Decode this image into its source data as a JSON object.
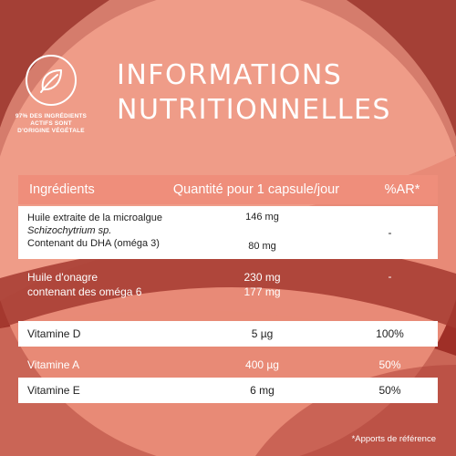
{
  "badge": {
    "icon": "leaf-icon",
    "line1": "97% DES INGRÉDIENTS",
    "line2": "ACTIFS SONT",
    "line3": "D'ORIGINE VÉGÉTALE"
  },
  "title": {
    "line1": "INFORMATIONS",
    "line2": "NUTRITIONNELLES"
  },
  "table": {
    "headers": {
      "ingredients": "Ingrédients",
      "quantity": "Quantité pour 1 capsule/jour",
      "ar": "%AR*"
    },
    "rows": [
      {
        "ingredient_line1": "Huile extraite de la microalgue",
        "ingredient_line2": "Schizochytrium sp.",
        "ingredient_line3": "Contenant du DHA (oméga 3)",
        "quantity_line1": "146 mg",
        "quantity_line2": "80 mg",
        "ar": "-"
      },
      {
        "ingredient_line1": "Huile d'onagre",
        "ingredient_line2": "contenant des oméga 6",
        "quantity_line1": "230 mg",
        "quantity_line2": "177 mg",
        "ar": "-"
      },
      {
        "ingredient": "Vitamine D",
        "quantity": "5 µg",
        "ar": "100%"
      },
      {
        "ingredient": "Vitamine A",
        "quantity": "400 µg",
        "ar": "50%"
      },
      {
        "ingredient": "Vitamine E",
        "quantity": "6 mg",
        "ar": "50%"
      }
    ]
  },
  "footnote": "*Apports de référence",
  "colors": {
    "dark_red": "#a8362c",
    "salmon": "#ef8e7b",
    "light_salmon": "#f0a08e",
    "white": "#ffffff"
  }
}
